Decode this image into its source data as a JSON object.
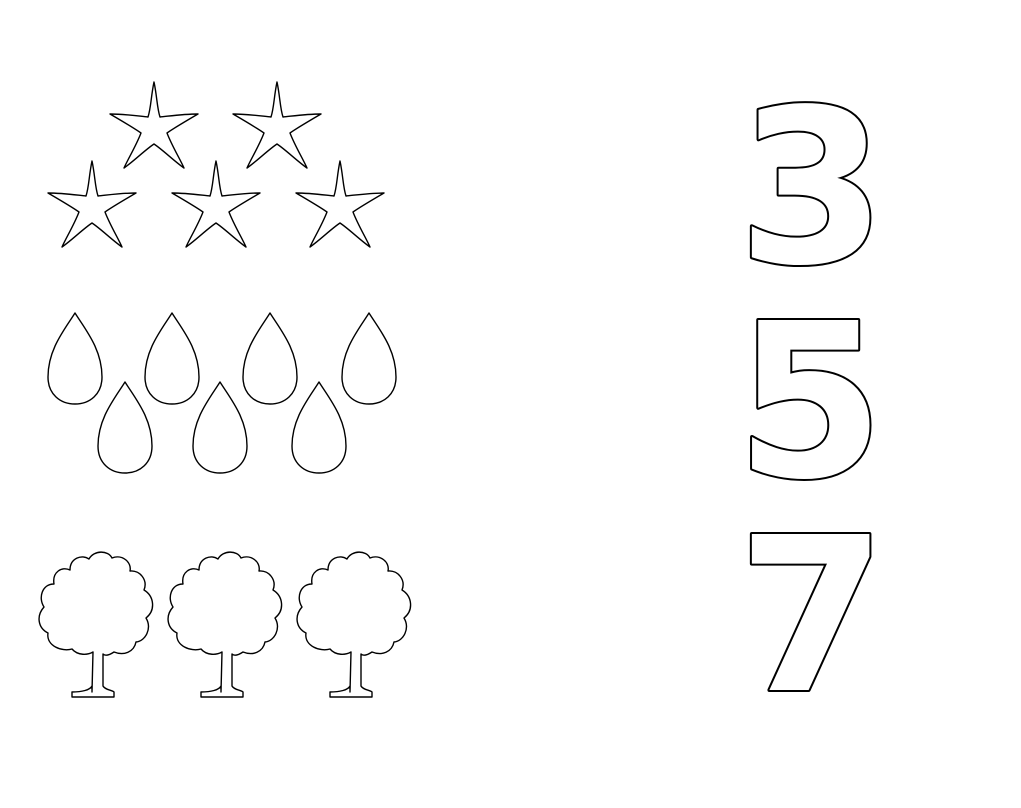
{
  "worksheet": {
    "groups": [
      {
        "shape": "star-icon",
        "count": 5
      },
      {
        "shape": "raindrop-icon",
        "count": 7
      },
      {
        "shape": "tree-icon",
        "count": 3
      }
    ],
    "numbers": [
      "3",
      "5",
      "7"
    ],
    "colors": {
      "stroke": "#000000",
      "background": "#ffffff"
    }
  }
}
